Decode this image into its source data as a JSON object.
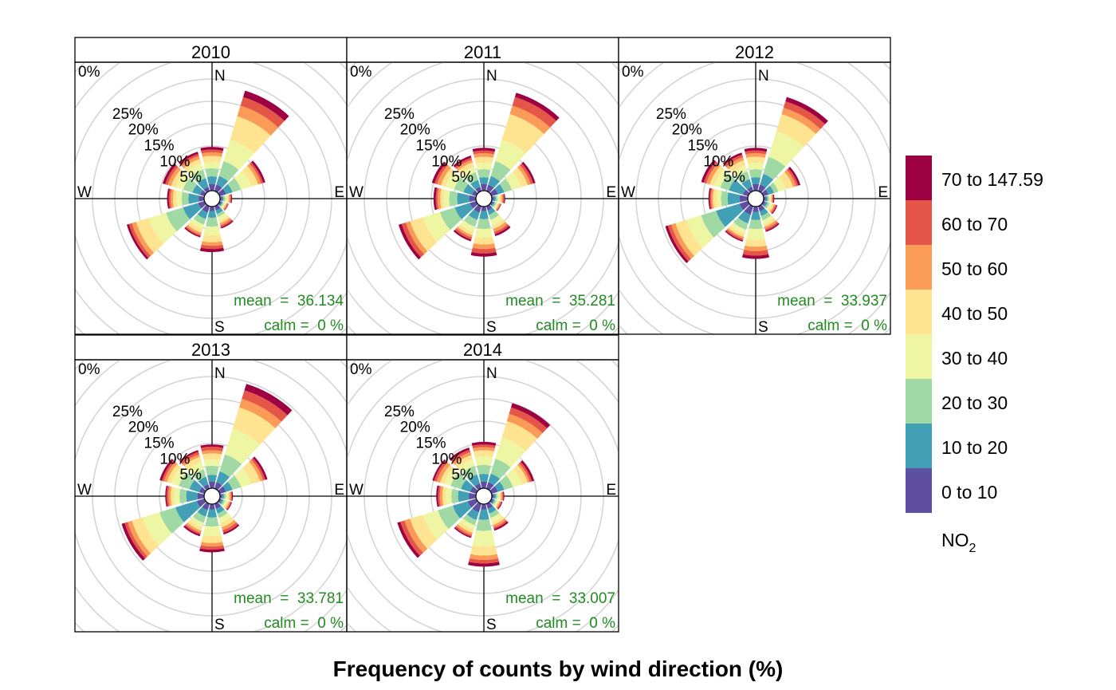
{
  "chart_data": {
    "type": "polar-stacked-bar",
    "title": "",
    "xlabel": "Frequency of counts by wind direction (%)",
    "radial_axis": {
      "unit": "%",
      "ticks": [
        0,
        5,
        10,
        15,
        20,
        25
      ],
      "tick_labels": [
        "0%",
        "5%",
        "10%",
        "15%",
        "20%",
        "25%"
      ],
      "max": 30
    },
    "directions": [
      0,
      30,
      60,
      90,
      120,
      150,
      180,
      210,
      240,
      270,
      300,
      330
    ],
    "compass_labels": {
      "n": "N",
      "e": "E",
      "s": "S",
      "w": "W"
    },
    "legend": {
      "title_main": "NO",
      "title_sub": "2",
      "placement": "right",
      "bins": [
        {
          "label": "70 to 147.59",
          "color": "#9e0142"
        },
        {
          "label": "60 to 70",
          "color": "#e55649"
        },
        {
          "label": "50 to 60",
          "color": "#fa9c58"
        },
        {
          "label": "40 to 50",
          "color": "#fee391"
        },
        {
          "label": "30 to 40",
          "color": "#eef5a3"
        },
        {
          "label": "20 to 30",
          "color": "#a0d9a3"
        },
        {
          "label": "10 to 20",
          "color": "#41a0b5"
        },
        {
          "label": "0 to 10",
          "color": "#5e4fa2"
        }
      ]
    },
    "annotation_color": "#228b22",
    "grid": true,
    "panels": [
      {
        "title": "2010",
        "mean_text": "mean  =  36.134",
        "calm_text": "calm =  0 %",
        "cumulative": [
          [
            1.5,
            3.2,
            5.0,
            6.5,
            7.8,
            8.6,
            9.2,
            9.8
          ],
          [
            1.5,
            3.5,
            7.0,
            12.0,
            17.5,
            20.0,
            22.0,
            23.5
          ],
          [
            1.5,
            3.0,
            5.0,
            7.5,
            9.0,
            9.7,
            10.2,
            10.7
          ],
          [
            0.5,
            0.8,
            1.2,
            1.6,
            2.0,
            2.3,
            2.5,
            2.7
          ],
          [
            0.5,
            0.7,
            1.0,
            1.3,
            1.6,
            1.8,
            2.0,
            2.1
          ],
          [
            1.0,
            1.8,
            2.5,
            3.3,
            4.0,
            4.5,
            4.9,
            5.2
          ],
          [
            1.0,
            2.5,
            4.5,
            6.5,
            8.0,
            8.8,
            9.5,
            10.2
          ],
          [
            1.5,
            3.0,
            4.3,
            5.3,
            6.2,
            6.7,
            7.0,
            7.3
          ],
          [
            1.5,
            5.0,
            9.0,
            13.0,
            16.0,
            17.0,
            17.7,
            18.2
          ],
          [
            1.2,
            3.5,
            5.0,
            6.2,
            7.0,
            7.5,
            7.9,
            8.3
          ],
          [
            1.0,
            2.8,
            5.0,
            6.7,
            7.8,
            8.6,
            9.2,
            9.8
          ],
          [
            1.0,
            3.0,
            5.0,
            6.5,
            7.5,
            8.2,
            8.7,
            9.2
          ]
        ]
      },
      {
        "title": "2011",
        "mean_text": "mean  =  35.281",
        "calm_text": "calm =  0 %",
        "cumulative": [
          [
            1.5,
            3.0,
            4.8,
            6.3,
            7.6,
            8.4,
            9.0,
            9.6
          ],
          [
            1.5,
            3.5,
            7.0,
            12.0,
            18.0,
            20.0,
            22.0,
            23.0
          ],
          [
            1.5,
            3.0,
            4.8,
            7.0,
            8.5,
            9.2,
            9.8,
            10.3
          ],
          [
            0.5,
            0.9,
            1.3,
            1.8,
            2.2,
            2.5,
            2.8,
            3.0
          ],
          [
            0.5,
            0.8,
            1.2,
            1.5,
            1.8,
            2.0,
            2.2,
            2.3
          ],
          [
            1.0,
            2.0,
            3.2,
            4.5,
            5.3,
            6.0,
            6.5,
            7.0
          ],
          [
            1.0,
            2.8,
            5.0,
            7.0,
            8.5,
            9.5,
            10.5,
            11.2
          ],
          [
            1.5,
            3.2,
            4.8,
            6.0,
            6.8,
            7.3,
            7.8,
            8.2
          ],
          [
            1.5,
            5.0,
            8.5,
            12.5,
            15.5,
            16.5,
            17.5,
            18.2
          ],
          [
            1.5,
            4.2,
            6.0,
            7.3,
            8.0,
            8.6,
            9.0,
            9.5
          ],
          [
            1.0,
            3.0,
            5.2,
            7.2,
            8.3,
            9.2,
            9.8,
            10.4
          ],
          [
            1.0,
            2.6,
            4.4,
            5.7,
            6.7,
            7.3,
            7.8,
            8.3
          ]
        ]
      },
      {
        "title": "2012",
        "mean_text": "mean  =  33.937",
        "calm_text": "calm =  0 %",
        "cumulative": [
          [
            1.5,
            3.0,
            4.8,
            6.3,
            7.6,
            8.4,
            9.0,
            9.6
          ],
          [
            1.5,
            4.0,
            8.0,
            14.0,
            18.0,
            19.5,
            21.0,
            22.0
          ],
          [
            1.2,
            2.5,
            3.5,
            5.3,
            7.0,
            7.7,
            8.2,
            8.7
          ],
          [
            0.5,
            0.9,
            1.2,
            1.5,
            1.8,
            2.0,
            2.2,
            2.4
          ],
          [
            0.5,
            1.0,
            1.5,
            2.0,
            2.5,
            2.8,
            3.1,
            3.3
          ],
          [
            1.2,
            2.3,
            3.3,
            4.2,
            4.8,
            5.3,
            5.7,
            6.0
          ],
          [
            1.2,
            3.0,
            5.0,
            7.5,
            9.0,
            10.0,
            11.0,
            11.7
          ],
          [
            2.0,
            4.0,
            5.5,
            6.5,
            7.2,
            7.6,
            8.0,
            8.3
          ],
          [
            2.0,
            7.5,
            11.0,
            14.5,
            17.0,
            18.0,
            18.8,
            19.4
          ],
          [
            1.8,
            4.5,
            6.0,
            7.0,
            7.8,
            8.2,
            8.5,
            8.8
          ],
          [
            1.2,
            4.5,
            6.5,
            8.0,
            9.0,
            9.8,
            10.4,
            11.0
          ],
          [
            1.0,
            2.8,
            4.6,
            6.0,
            7.2,
            7.9,
            8.5,
            9.0
          ]
        ]
      },
      {
        "title": "2013",
        "mean_text": "mean  =  33.781",
        "calm_text": "calm =  0 %",
        "cumulative": [
          [
            1.5,
            3.0,
            5.0,
            6.5,
            7.8,
            8.5,
            9.3,
            9.8
          ],
          [
            1.5,
            4.0,
            8.0,
            14.0,
            19.0,
            21.0,
            23.0,
            24.5
          ],
          [
            1.5,
            3.0,
            5.0,
            7.5,
            9.5,
            10.2,
            10.7,
            11.2
          ],
          [
            0.5,
            0.9,
            1.3,
            1.8,
            2.2,
            2.5,
            2.7,
            2.9
          ],
          [
            0.5,
            0.9,
            1.3,
            1.8,
            2.2,
            2.5,
            2.7,
            2.9
          ],
          [
            1.2,
            2.3,
            3.3,
            4.5,
            5.5,
            6.2,
            6.8,
            7.2
          ],
          [
            1.2,
            3.0,
            5.0,
            7.2,
            8.7,
            9.5,
            10.2,
            10.8
          ],
          [
            1.5,
            3.0,
            4.5,
            5.5,
            6.3,
            6.8,
            7.2,
            7.6
          ],
          [
            1.8,
            6.8,
            10.5,
            14.5,
            17.0,
            18.0,
            18.7,
            19.4
          ],
          [
            1.5,
            4.0,
            5.5,
            6.8,
            7.5,
            8.0,
            8.4,
            8.7
          ],
          [
            1.2,
            3.5,
            6.0,
            7.8,
            8.8,
            9.5,
            10.0,
            10.5
          ],
          [
            1.0,
            2.8,
            4.5,
            6.2,
            7.4,
            8.0,
            8.6,
            9.0
          ]
        ]
      },
      {
        "title": "2014",
        "mean_text": "mean  =  33.007",
        "calm_text": "calm =  0 %",
        "cumulative": [
          [
            1.5,
            3.2,
            5.2,
            7.2,
            8.5,
            9.2,
            9.8,
            10.4
          ],
          [
            1.5,
            3.5,
            7.0,
            12.0,
            15.8,
            17.5,
            19.0,
            20.0
          ],
          [
            1.5,
            3.0,
            5.0,
            7.2,
            8.5,
            9.0,
            9.5,
            10.0
          ],
          [
            0.5,
            0.9,
            1.3,
            1.7,
            2.1,
            2.4,
            2.6,
            2.8
          ],
          [
            0.5,
            0.8,
            1.2,
            1.6,
            1.9,
            2.2,
            2.4,
            2.6
          ],
          [
            1.2,
            2.3,
            3.3,
            4.3,
            5.0,
            5.5,
            5.9,
            6.3
          ],
          [
            1.2,
            3.5,
            6.0,
            9.5,
            11.5,
            12.5,
            13.3,
            14.0
          ],
          [
            2.0,
            3.8,
            5.0,
            6.0,
            6.8,
            7.3,
            7.7,
            8.0
          ],
          [
            2.0,
            5.5,
            9.0,
            12.5,
            15.5,
            16.8,
            17.8,
            18.5
          ],
          [
            1.6,
            4.0,
            5.5,
            6.8,
            7.5,
            8.1,
            8.5,
            8.9
          ],
          [
            1.4,
            3.6,
            6.0,
            7.5,
            8.5,
            9.3,
            9.9,
            10.3
          ],
          [
            1.2,
            3.3,
            5.3,
            6.8,
            7.8,
            8.5,
            9.1,
            9.6
          ]
        ]
      }
    ]
  }
}
